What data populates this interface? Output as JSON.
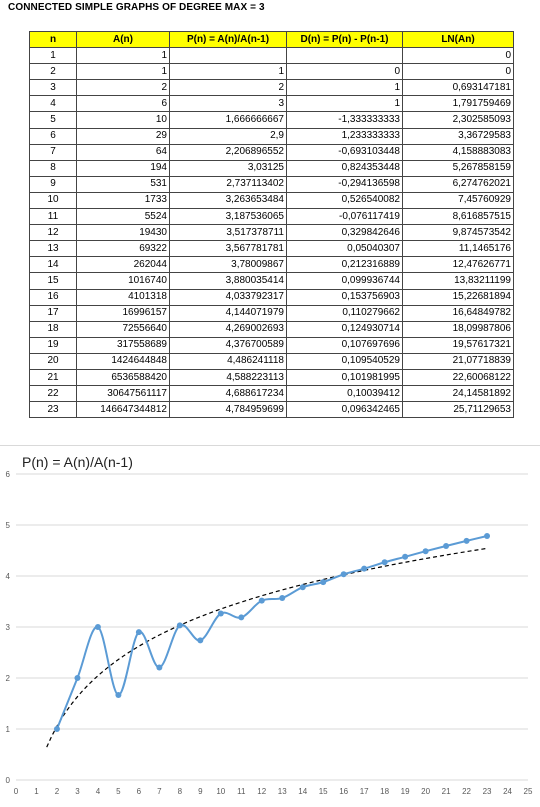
{
  "header": {
    "title": "CONNECTED SIMPLE GRAPHS OF DEGREE MAX = 3"
  },
  "table": {
    "columns": [
      "n",
      "A(n)",
      "P(n) = A(n)/A(n-1)",
      "D(n) = P(n) - P(n-1)",
      "LN(An)"
    ],
    "rows": [
      [
        "1",
        "1",
        "",
        "",
        "0"
      ],
      [
        "2",
        "1",
        "1",
        "0",
        "0"
      ],
      [
        "3",
        "2",
        "2",
        "1",
        "0,693147181"
      ],
      [
        "4",
        "6",
        "3",
        "1",
        "1,791759469"
      ],
      [
        "5",
        "10",
        "1,666666667",
        "-1,333333333",
        "2,302585093"
      ],
      [
        "6",
        "29",
        "2,9",
        "1,233333333",
        "3,36729583"
      ],
      [
        "7",
        "64",
        "2,206896552",
        "-0,693103448",
        "4,158883083"
      ],
      [
        "8",
        "194",
        "3,03125",
        "0,824353448",
        "5,267858159"
      ],
      [
        "9",
        "531",
        "2,737113402",
        "-0,294136598",
        "6,274762021"
      ],
      [
        "10",
        "1733",
        "3,263653484",
        "0,526540082",
        "7,45760929"
      ],
      [
        "11",
        "5524",
        "3,187536065",
        "-0,076117419",
        "8,616857515"
      ],
      [
        "12",
        "19430",
        "3,517378711",
        "0,329842646",
        "9,874573542"
      ],
      [
        "13",
        "69322",
        "3,567781781",
        "0,05040307",
        "11,1465176"
      ],
      [
        "14",
        "262044",
        "3,78009867",
        "0,212316889",
        "12,47626771"
      ],
      [
        "15",
        "1016740",
        "3,880035414",
        "0,099936744",
        "13,83211199"
      ],
      [
        "16",
        "4101318",
        "4,033792317",
        "0,153756903",
        "15,22681894"
      ],
      [
        "17",
        "16996157",
        "4,144071979",
        "0,110279662",
        "16,64849782"
      ],
      [
        "18",
        "72556640",
        "4,269002693",
        "0,124930714",
        "18,09987806"
      ],
      [
        "19",
        "317558689",
        "4,376700589",
        "0,107697696",
        "19,57617321"
      ],
      [
        "20",
        "1424644848",
        "4,486241118",
        "0,109540529",
        "21,07718839"
      ],
      [
        "21",
        "6536588420",
        "4,588223113",
        "0,101981995",
        "22,60068122"
      ],
      [
        "22",
        "30647561117",
        "4,688617234",
        "0,10039412",
        "24,14581892"
      ],
      [
        "23",
        "146647344812",
        "4,784959699",
        "0,096342465",
        "25,71129653"
      ]
    ]
  },
  "chart_data": {
    "type": "line",
    "title": "P(n) = A(n)/A(n-1)",
    "xlabel": "",
    "ylabel": "",
    "xlim": [
      0,
      25
    ],
    "ylim": [
      0,
      6
    ],
    "x_ticks": [
      "0",
      "1",
      "2",
      "3",
      "4",
      "5",
      "6",
      "7",
      "8",
      "9",
      "10",
      "11",
      "12",
      "13",
      "14",
      "15",
      "16",
      "17",
      "18",
      "19",
      "20",
      "21",
      "22",
      "23",
      "24",
      "25"
    ],
    "y_ticks": [
      "0",
      "1",
      "2",
      "3",
      "4",
      "5",
      "6"
    ],
    "grid": true,
    "legend": "none",
    "series": [
      {
        "x": [
          2,
          3,
          4,
          5,
          6,
          7,
          8,
          9,
          10,
          11,
          12,
          13,
          14,
          15,
          16,
          17,
          18,
          19,
          20,
          21,
          22,
          23
        ],
        "values": [
          1,
          2,
          3,
          1.666666667,
          2.9,
          2.206896552,
          3.03125,
          2.737113402,
          3.263653484,
          3.187536065,
          3.517378711,
          3.567781781,
          3.78009867,
          3.880035414,
          4.033792317,
          4.144071979,
          4.269002693,
          4.376700589,
          4.486241118,
          4.588223113,
          4.688617234,
          4.784959699
        ],
        "smooth": true,
        "color": "#5b9bd5"
      }
    ],
    "trendline": {
      "style": "dashed",
      "color": "#000000",
      "x_range": [
        1.5,
        23
      ]
    }
  }
}
